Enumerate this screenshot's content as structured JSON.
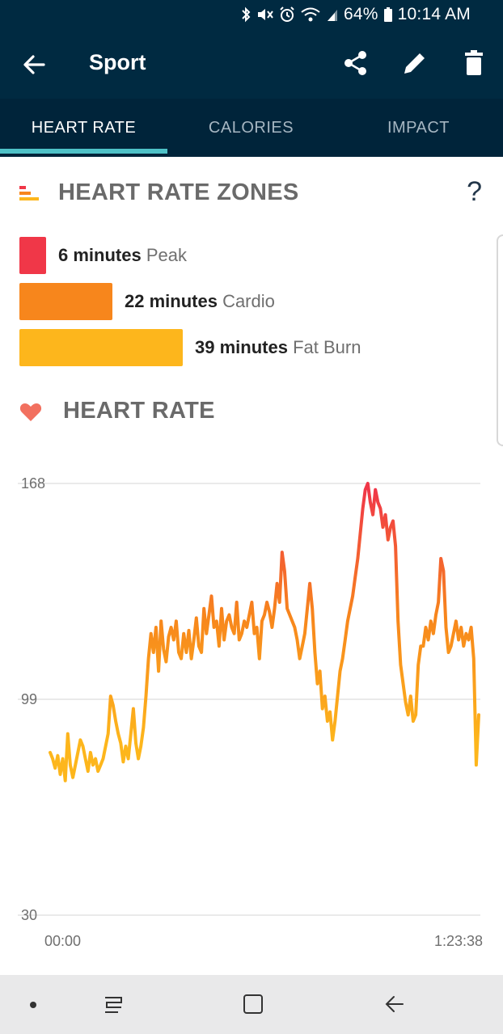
{
  "status_bar": {
    "battery": "64%",
    "time": "10:14 AM",
    "icons": [
      "bluetooth-icon",
      "mute-icon",
      "alarm-icon",
      "wifi-icon",
      "signal-icon",
      "battery-icon"
    ]
  },
  "app_bar": {
    "title": "Sport",
    "icons": [
      "back-arrow-icon",
      "share-icon",
      "edit-icon",
      "delete-icon"
    ]
  },
  "tabs": [
    {
      "label": "HEART RATE",
      "active": true
    },
    {
      "label": "CALORIES",
      "active": false
    },
    {
      "label": "IMPACT",
      "active": false
    }
  ],
  "zones_section": {
    "title": "HEART RATE ZONES",
    "help": "?",
    "zones": [
      {
        "amount": "6 minutes",
        "name": "Peak",
        "minutes": 6,
        "color": "#f03748"
      },
      {
        "amount": "22 minutes",
        "name": "Cardio",
        "minutes": 22,
        "color": "#f7861c"
      },
      {
        "amount": "39 minutes",
        "name": "Fat Burn",
        "minutes": 39,
        "color": "#fdb61c"
      }
    ]
  },
  "heart_section": {
    "title": "HEART RATE"
  },
  "chart_data": {
    "type": "line",
    "ylim": [
      30,
      168
    ],
    "y_ticks": [
      "168",
      "99",
      "30"
    ],
    "x_ticks": [
      "00:00",
      "1:23:38"
    ],
    "grid": true,
    "gradient_colors": [
      "#fdb61c",
      "#f7861c",
      "#f03748"
    ],
    "series": [
      {
        "values": [
          82,
          80,
          77,
          81,
          75,
          80,
          73,
          88,
          78,
          74,
          78,
          82,
          86,
          84,
          80,
          76,
          82,
          78,
          80,
          76,
          78,
          80,
          84,
          88,
          100,
          97,
          92,
          88,
          85,
          79,
          84,
          80,
          88,
          96,
          85,
          80,
          84,
          90,
          100,
          112,
          120,
          114,
          122,
          108,
          124,
          115,
          111,
          119,
          122,
          118,
          124,
          114,
          112,
          120,
          114,
          121,
          112,
          118,
          125,
          116,
          114,
          128,
          120,
          126,
          132,
          122,
          124,
          116,
          128,
          118,
          124,
          126,
          122,
          120,
          130,
          118,
          120,
          124,
          122,
          126,
          130,
          120,
          122,
          112,
          124,
          126,
          130,
          127,
          122,
          128,
          136,
          130,
          146,
          140,
          128,
          126,
          124,
          122,
          118,
          112,
          116,
          120,
          128,
          136,
          128,
          114,
          104,
          108,
          96,
          100,
          92,
          95,
          86,
          92,
          100,
          108,
          112,
          118,
          124,
          128,
          132,
          138,
          144,
          152,
          160,
          166,
          168,
          162,
          158,
          166,
          162,
          160,
          154,
          158,
          150,
          154,
          156,
          148,
          124,
          110,
          104,
          98,
          94,
          100,
          92,
          94,
          110,
          116,
          116,
          122,
          118,
          124,
          120,
          126,
          130,
          144,
          140,
          122,
          114,
          116,
          120,
          124,
          118,
          122,
          116,
          120,
          118,
          122,
          112,
          78,
          94
        ]
      }
    ]
  },
  "nav_bar": {
    "items": [
      "recent-apps-dot",
      "recents-icon",
      "home-icon",
      "back-icon"
    ]
  }
}
